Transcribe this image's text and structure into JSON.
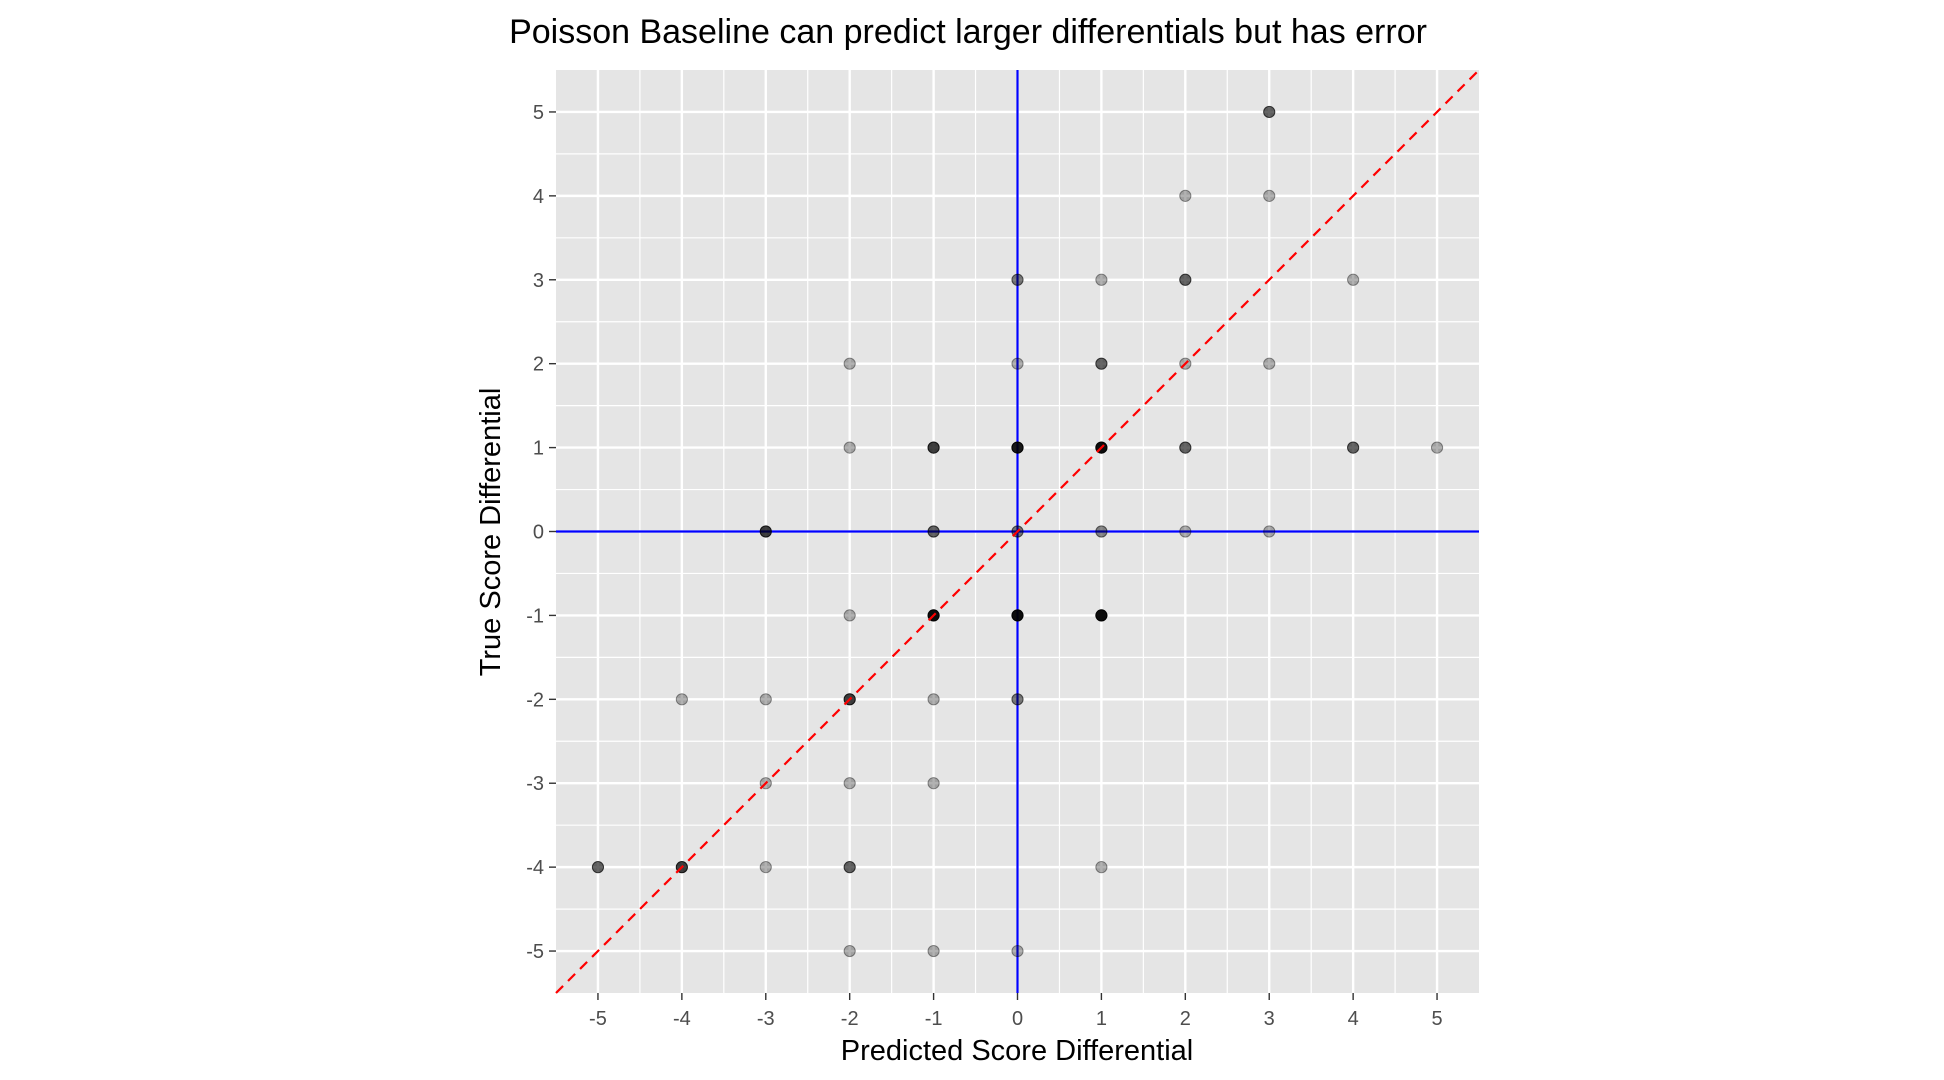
{
  "chart_data": {
    "type": "scatter",
    "title": "Poisson Baseline can predict larger differentials but has error",
    "xlabel": "Predicted Score Differential",
    "ylabel": "True Score Differential",
    "xlim": [
      -5.5,
      5.5
    ],
    "ylim": [
      -5.5,
      5.5
    ],
    "x_ticks": [
      "-5",
      "-4",
      "-3",
      "-2",
      "-1",
      "0",
      "1",
      "2",
      "3",
      "4",
      "5"
    ],
    "y_ticks": [
      "-5",
      "-4",
      "-3",
      "-2",
      "-1",
      "0",
      "1",
      "2",
      "3",
      "4",
      "5"
    ],
    "grid": true,
    "legend": "none",
    "colors": {
      "panel": "#e5e5e5",
      "grid": "#ffffff",
      "point": "#000000",
      "reference_lines": "#0000ff",
      "identity_line": "#ff0000"
    },
    "reference_lines": {
      "x": 0,
      "y": 0
    },
    "identity_line": {
      "slope": 1,
      "intercept": 0,
      "style": "dashed"
    },
    "points": [
      {
        "x": 3,
        "y": 5,
        "opacity": 0.6
      },
      {
        "x": 2,
        "y": 4,
        "opacity": 0.3
      },
      {
        "x": 3,
        "y": 4,
        "opacity": 0.3
      },
      {
        "x": 0,
        "y": 3,
        "opacity": 0.5
      },
      {
        "x": 1,
        "y": 3,
        "opacity": 0.3
      },
      {
        "x": 2,
        "y": 3,
        "opacity": 0.6
      },
      {
        "x": 4,
        "y": 3,
        "opacity": 0.3
      },
      {
        "x": -2,
        "y": 2,
        "opacity": 0.3
      },
      {
        "x": 0,
        "y": 2,
        "opacity": 0.3
      },
      {
        "x": 1,
        "y": 2,
        "opacity": 0.6
      },
      {
        "x": 2,
        "y": 2,
        "opacity": 0.3
      },
      {
        "x": 3,
        "y": 2,
        "opacity": 0.3
      },
      {
        "x": -2,
        "y": 1,
        "opacity": 0.3
      },
      {
        "x": -1,
        "y": 1,
        "opacity": 0.75
      },
      {
        "x": 0,
        "y": 1,
        "opacity": 0.9
      },
      {
        "x": 1,
        "y": 1,
        "opacity": 0.95
      },
      {
        "x": 2,
        "y": 1,
        "opacity": 0.6
      },
      {
        "x": 4,
        "y": 1,
        "opacity": 0.6
      },
      {
        "x": 5,
        "y": 1,
        "opacity": 0.3
      },
      {
        "x": -3,
        "y": 0,
        "opacity": 0.75
      },
      {
        "x": -1,
        "y": 0,
        "opacity": 0.6
      },
      {
        "x": 0,
        "y": 0,
        "opacity": 0.5
      },
      {
        "x": 1,
        "y": 0,
        "opacity": 0.45
      },
      {
        "x": 2,
        "y": 0,
        "opacity": 0.3
      },
      {
        "x": 3,
        "y": 0,
        "opacity": 0.3
      },
      {
        "x": -2,
        "y": -1,
        "opacity": 0.3
      },
      {
        "x": -1,
        "y": -1,
        "opacity": 0.95
      },
      {
        "x": 0,
        "y": -1,
        "opacity": 0.95
      },
      {
        "x": 1,
        "y": -1,
        "opacity": 0.95
      },
      {
        "x": -4,
        "y": -2,
        "opacity": 0.3
      },
      {
        "x": -3,
        "y": -2,
        "opacity": 0.3
      },
      {
        "x": -2,
        "y": -2,
        "opacity": 0.75
      },
      {
        "x": -1,
        "y": -2,
        "opacity": 0.3
      },
      {
        "x": 0,
        "y": -2,
        "opacity": 0.5
      },
      {
        "x": -3,
        "y": -3,
        "opacity": 0.3
      },
      {
        "x": -2,
        "y": -3,
        "opacity": 0.3
      },
      {
        "x": -1,
        "y": -3,
        "opacity": 0.3
      },
      {
        "x": -5,
        "y": -4,
        "opacity": 0.6
      },
      {
        "x": -4,
        "y": -4,
        "opacity": 0.75
      },
      {
        "x": -3,
        "y": -4,
        "opacity": 0.3
      },
      {
        "x": -2,
        "y": -4,
        "opacity": 0.6
      },
      {
        "x": 1,
        "y": -4,
        "opacity": 0.3
      },
      {
        "x": -2,
        "y": -5,
        "opacity": 0.3
      },
      {
        "x": -1,
        "y": -5,
        "opacity": 0.3
      },
      {
        "x": 0,
        "y": -5,
        "opacity": 0.3
      }
    ]
  }
}
